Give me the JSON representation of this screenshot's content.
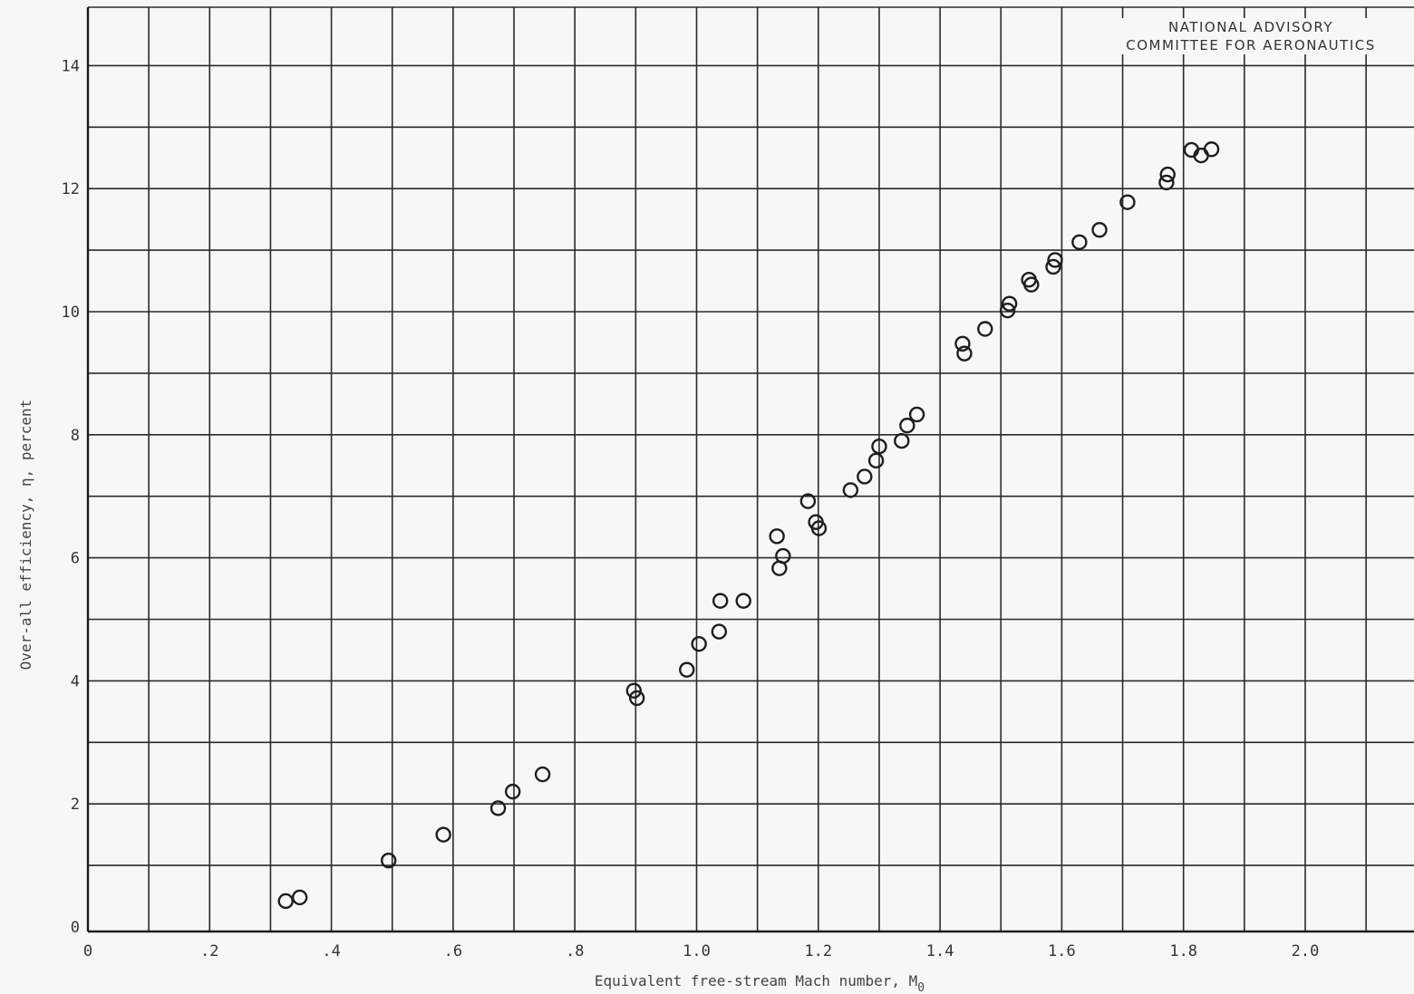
{
  "chart_data": {
    "type": "scatter",
    "title": "",
    "xlabel": "Equivalent free-stream Mach number, M",
    "xlabel_subscript": "0",
    "ylabel": "Over-all efficiency,  η,  percent",
    "xlim": [
      0,
      2.2
    ],
    "ylim": [
      0,
      15
    ],
    "grid": true,
    "x_ticks": [
      {
        "value": 0,
        "label": "0"
      },
      {
        "value": 0.2,
        "label": ".2"
      },
      {
        "value": 0.4,
        "label": ".4"
      },
      {
        "value": 0.6,
        "label": ".6"
      },
      {
        "value": 0.8,
        "label": ".8"
      },
      {
        "value": 1.0,
        "label": "1.0"
      },
      {
        "value": 1.2,
        "label": "1.2"
      },
      {
        "value": 1.4,
        "label": "1.4"
      },
      {
        "value": 1.6,
        "label": "1.6"
      },
      {
        "value": 1.8,
        "label": "1.8"
      },
      {
        "value": 2.0,
        "label": "2.0"
      }
    ],
    "y_ticks": [
      {
        "value": 0,
        "label": "0"
      },
      {
        "value": 2,
        "label": "2"
      },
      {
        "value": 4,
        "label": "4"
      },
      {
        "value": 6,
        "label": "6"
      },
      {
        "value": 8,
        "label": "8"
      },
      {
        "value": 10,
        "label": "10"
      },
      {
        "value": 12,
        "label": "12"
      },
      {
        "value": 14,
        "label": "14"
      }
    ],
    "series": [
      {
        "marker": "open-circle",
        "points": [
          [
            0.325,
            0.42
          ],
          [
            0.348,
            0.48
          ],
          [
            0.494,
            1.08
          ],
          [
            0.584,
            1.5
          ],
          [
            0.674,
            1.93
          ],
          [
            0.698,
            2.2
          ],
          [
            0.747,
            2.48
          ],
          [
            0.897,
            3.84
          ],
          [
            0.902,
            3.72
          ],
          [
            0.984,
            4.18
          ],
          [
            1.004,
            4.6
          ],
          [
            1.037,
            4.8
          ],
          [
            1.039,
            5.3
          ],
          [
            1.077,
            5.3
          ],
          [
            1.132,
            6.35
          ],
          [
            1.136,
            5.83
          ],
          [
            1.142,
            6.03
          ],
          [
            1.183,
            6.92
          ],
          [
            1.196,
            6.58
          ],
          [
            1.201,
            6.48
          ],
          [
            1.253,
            7.1
          ],
          [
            1.276,
            7.32
          ],
          [
            1.295,
            7.58
          ],
          [
            1.3,
            7.81
          ],
          [
            1.337,
            7.9
          ],
          [
            1.346,
            8.15
          ],
          [
            1.362,
            8.33
          ],
          [
            1.437,
            9.48
          ],
          [
            1.44,
            9.32
          ],
          [
            1.474,
            9.72
          ],
          [
            1.511,
            10.02
          ],
          [
            1.514,
            10.13
          ],
          [
            1.546,
            10.52
          ],
          [
            1.55,
            10.44
          ],
          [
            1.586,
            10.73
          ],
          [
            1.589,
            10.84
          ],
          [
            1.629,
            11.13
          ],
          [
            1.662,
            11.33
          ],
          [
            1.708,
            11.78
          ],
          [
            1.772,
            12.1
          ],
          [
            1.774,
            12.23
          ],
          [
            1.813,
            12.63
          ],
          [
            1.829,
            12.54
          ],
          [
            1.846,
            12.64
          ]
        ]
      }
    ]
  },
  "stamp": {
    "line1": "NATIONAL ADVISORY",
    "line2": "COMMITTEE FOR AERONAUTICS"
  }
}
